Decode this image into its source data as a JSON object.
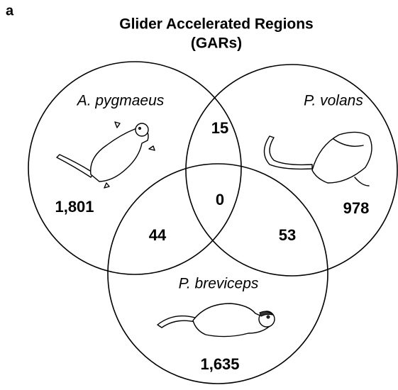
{
  "panel_label": "a",
  "title": [
    "Glider Accelerated Regions",
    "(GARs)"
  ],
  "sets": [
    {
      "label": "A. pygmaeus",
      "count": "1,801"
    },
    {
      "label": "P. volans",
      "count": "978"
    },
    {
      "label": "P. breviceps",
      "count": "1,635"
    }
  ],
  "intersections": [
    {
      "sets": "A. pygmaeus & P. volans",
      "count": "15"
    },
    {
      "sets": "A. pygmaeus & P. breviceps",
      "count": "44"
    },
    {
      "sets": "P. volans & P. breviceps",
      "count": "53"
    },
    {
      "sets": "all",
      "count": "0"
    }
  ]
}
